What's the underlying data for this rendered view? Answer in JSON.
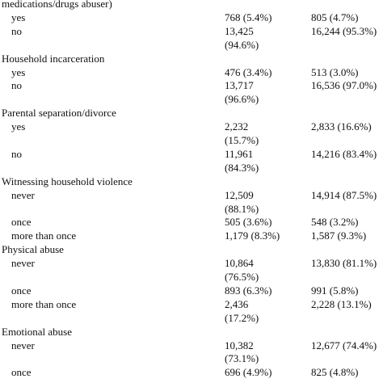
{
  "table": {
    "rows": [
      {
        "label": "medications/drugs abuser)"
      },
      {
        "label": "yes",
        "col1": [
          "768 (5.4%)"
        ],
        "col2": [
          "805 (4.7%)"
        ]
      },
      {
        "label": "no",
        "col1": [
          "13,425",
          "(94.6%)"
        ],
        "col2": [
          "16,244 (95.3%)"
        ]
      },
      {
        "label": "Household incarceration"
      },
      {
        "label": "yes",
        "col1": [
          "476 (3.4%)"
        ],
        "col2": [
          "513 (3.0%)"
        ]
      },
      {
        "label": "no",
        "col1": [
          "13,717",
          "(96.6%)"
        ],
        "col2": [
          "16,536 (97.0%)"
        ]
      },
      {
        "label": "Parental separation/divorce"
      },
      {
        "label": "yes",
        "col1": [
          "2,232",
          "(15.7%)"
        ],
        "col2": [
          "2,833 (16.6%)"
        ]
      },
      {
        "label": "no",
        "col1": [
          "11,961",
          "(84.3%)"
        ],
        "col2": [
          "14,216 (83.4%)"
        ]
      },
      {
        "label": "Witnessing household violence"
      },
      {
        "label": "never",
        "col1": [
          "12,509",
          "(88.1%)"
        ],
        "col2": [
          "14,914 (87.5%)"
        ]
      },
      {
        "label": "once",
        "col1": [
          "505 (3.6%)"
        ],
        "col2": [
          "548 (3.2%)"
        ]
      },
      {
        "label": "more than once",
        "col1": [
          "1,179 (8.3%)"
        ],
        "col2": [
          "1,587 (9.3%)"
        ]
      },
      {
        "label": "Physical abuse"
      },
      {
        "label": "never",
        "col1": [
          "10,864",
          "(76.5%)"
        ],
        "col2": [
          "13,830 (81.1%)"
        ]
      },
      {
        "label": "once",
        "col1": [
          "893 (6.3%)"
        ],
        "col2": [
          "991 (5.8%)"
        ]
      },
      {
        "label": "more than once",
        "col1": [
          "2,436",
          "(17.2%)"
        ],
        "col2": [
          "2,228 (13.1%)"
        ]
      },
      {
        "label": "Emotional abuse"
      },
      {
        "label": "never",
        "col1": [
          "10,382",
          "(73.1%)"
        ],
        "col2": [
          "12,677 (74.4%)"
        ]
      },
      {
        "label": "once",
        "col1": [
          "696 (4.9%)"
        ],
        "col2": [
          "825 (4.8%)"
        ]
      }
    ]
  }
}
